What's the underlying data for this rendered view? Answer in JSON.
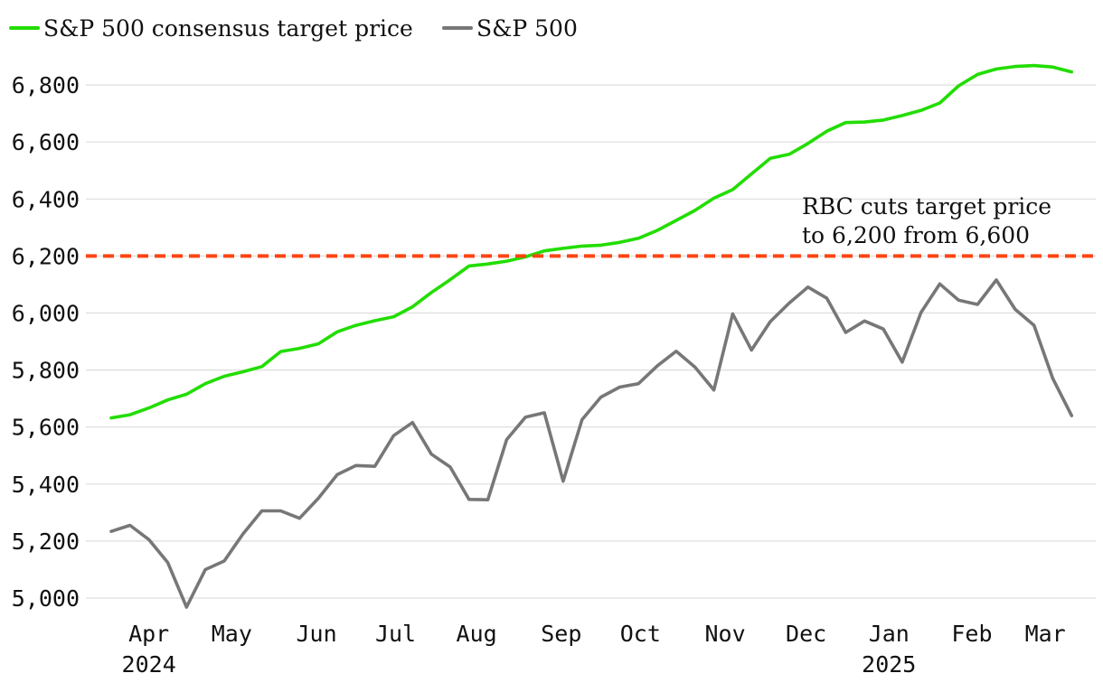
{
  "chart_data": {
    "type": "line",
    "title": "",
    "xlabel": "",
    "ylabel": "",
    "ylim": [
      4950,
      6980
    ],
    "yticks": [
      5000,
      5200,
      5400,
      5600,
      5800,
      6000,
      6200,
      6400,
      6600,
      6800
    ],
    "ytick_labels": [
      "5,000",
      "5,200",
      "5,400",
      "5,600",
      "5,800",
      "6,000",
      "6,200",
      "6,400",
      "6,600",
      "6,800"
    ],
    "x_unit": "weeks since 2024-03-29",
    "xlim": [
      0,
      51.5
    ],
    "xticks": [
      {
        "x": 2.0,
        "label": "Apr",
        "year": "2024"
      },
      {
        "x": 6.4,
        "label": "May",
        "year": ""
      },
      {
        "x": 10.9,
        "label": "Jun",
        "year": ""
      },
      {
        "x": 15.1,
        "label": "Jul",
        "year": ""
      },
      {
        "x": 19.4,
        "label": "Aug",
        "year": ""
      },
      {
        "x": 23.9,
        "label": "Sep",
        "year": ""
      },
      {
        "x": 28.1,
        "label": "Oct",
        "year": ""
      },
      {
        "x": 32.6,
        "label": "Nov",
        "year": ""
      },
      {
        "x": 36.9,
        "label": "Dec",
        "year": ""
      },
      {
        "x": 41.3,
        "label": "Jan",
        "year": "2025"
      },
      {
        "x": 45.7,
        "label": "Feb",
        "year": ""
      },
      {
        "x": 49.6,
        "label": "Mar",
        "year": ""
      }
    ],
    "legend": {
      "position": "top-left",
      "entries": [
        {
          "name": "S&P 500 consensus target price",
          "color": "#22dd00"
        },
        {
          "name": "S&P 500",
          "color": "#777777"
        }
      ]
    },
    "series": [
      {
        "name": "S&P 500 consensus target price",
        "color": "#22dd00",
        "x": [
          0,
          1,
          2,
          3,
          4,
          5,
          6,
          7,
          8,
          9,
          10,
          11,
          12,
          13,
          14,
          15,
          16,
          17,
          18,
          19,
          20,
          21,
          22,
          23,
          24,
          25,
          26,
          27,
          28,
          29,
          30,
          31,
          32,
          33,
          34,
          35,
          36,
          37,
          38,
          39,
          40,
          41,
          42,
          43,
          44,
          45,
          46,
          47,
          48,
          49,
          50,
          51
        ],
        "values": [
          5632,
          5643,
          5667,
          5695,
          5715,
          5752,
          5778,
          5794,
          5812,
          5865,
          5876,
          5892,
          5934,
          5957,
          5973,
          5987,
          6022,
          6072,
          6117,
          6165,
          6172,
          6182,
          6197,
          6218,
          6227,
          6235,
          6238,
          6248,
          6262,
          6290,
          6325,
          6360,
          6403,
          6433,
          6488,
          6543,
          6557,
          6595,
          6638,
          6668,
          6670,
          6677,
          6693,
          6711,
          6737,
          6797,
          6837,
          6856,
          6865,
          6868,
          6863,
          6846
        ]
      },
      {
        "name": "S&P 500",
        "color": "#777777",
        "x": [
          0,
          1,
          2,
          3,
          4,
          5,
          6,
          7,
          8,
          9,
          10,
          11,
          12,
          13,
          14,
          15,
          16,
          17,
          18,
          19,
          20,
          21,
          22,
          23,
          24,
          25,
          26,
          27,
          28,
          29,
          30,
          31,
          32,
          33,
          34,
          35,
          36,
          37,
          38,
          39,
          40,
          41,
          42,
          43,
          44,
          45,
          46,
          47,
          48,
          49,
          50,
          51
        ],
        "values": [
          5234,
          5255,
          5205,
          5125,
          4968,
          5100,
          5130,
          5225,
          5306,
          5306,
          5280,
          5350,
          5433,
          5465,
          5462,
          5570,
          5616,
          5505,
          5460,
          5346,
          5345,
          5556,
          5635,
          5650,
          5410,
          5626,
          5705,
          5740,
          5752,
          5815,
          5866,
          5810,
          5730,
          5997,
          5870,
          5970,
          6035,
          6091,
          6052,
          5932,
          5972,
          5944,
          5828,
          6002,
          6102,
          6045,
          6030,
          6116,
          6013,
          5957,
          5770,
          5640
        ]
      }
    ],
    "reference_line": {
      "y": 6200,
      "color": "#ff4411",
      "style": "dashed"
    },
    "annotation": {
      "line1": "RBC cuts target price",
      "line2": "to 6,200 from 6,600",
      "anchor_x": 43.3,
      "anchor_y": 6298
    }
  }
}
